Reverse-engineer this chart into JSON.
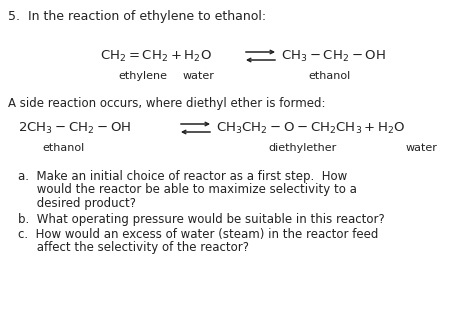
{
  "bg_color": "#ffffff",
  "text_color": "#222222",
  "figsize": [
    4.74,
    3.17
  ],
  "dpi": 100,
  "header": "5.  In the reaction of ethylene to ethanol:",
  "side_text": "A side reaction occurs, where diethyl ether is formed:",
  "eq1_lhs": "$\\mathrm{CH_2 = CH_2 + H_2O}$",
  "eq1_rhs": "$\\mathrm{CH_3 - CH_2 - OH}$",
  "eq1_label_ethylene": "ethylene",
  "eq1_label_water": "water",
  "eq1_label_ethanol": "ethanol",
  "eq2_lhs": "$\\mathrm{2CH_3 - CH_2 - OH}$",
  "eq2_rhs": "$\\mathrm{CH_3CH_2 - O - CH_2CH_3 + H_2O}$",
  "eq2_label_ethanol": "ethanol",
  "eq2_label_diethylether": "diethylether",
  "eq2_label_water": "water",
  "qa1": "a.  Make an initial choice of reactor as a first step.  How",
  "qa2": "     would the reactor be able to maximize selectivity to a",
  "qa3": "     desired product?",
  "qb": "b.  What operating pressure would be suitable in this reactor?",
  "qc1": "c.  How would an excess of water (steam) in the reactor feed",
  "qc2": "     affect the selectivity of the reactor?",
  "fs_header": 9.0,
  "fs_eq": 9.5,
  "fs_label": 8.0,
  "fs_body": 8.5,
  "arrow_color": "#222222",
  "arrow_lw": 1.1,
  "arrow_mutation": 6
}
